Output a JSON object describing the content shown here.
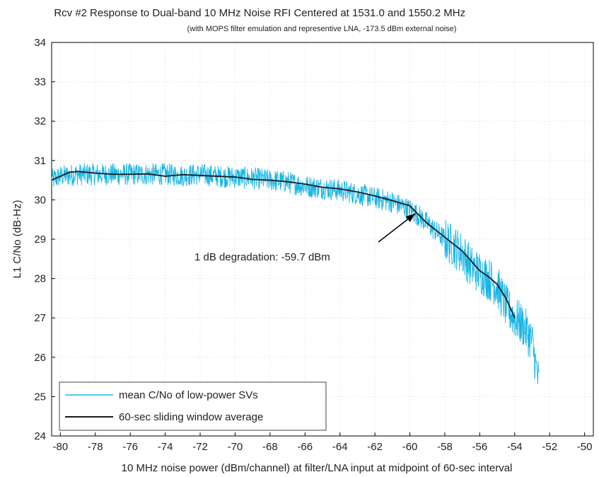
{
  "chart_data": {
    "type": "line",
    "label_prefix": "Rcv #2",
    "title": "Response to Dual-band 10 MHz Noise RFI Centered at 1531.0 and 1550.2 MHz",
    "subtitle": "(with MOPS filter emulation and representive LNA, -173.5 dBm external noise)",
    "xlabel": "10 MHz noise power (dBm/channel) at filter/LNA input at midpoint of 60-sec interval",
    "ylabel": "L1 C/No (dB-Hz)",
    "xlim": [
      -80.5,
      -49.5
    ],
    "ylim": [
      24,
      34
    ],
    "xticks": [
      -80,
      -78,
      -76,
      -74,
      -72,
      -70,
      -68,
      -66,
      -64,
      -62,
      -60,
      -58,
      -56,
      -54,
      -52,
      -50
    ],
    "yticks": [
      24,
      25,
      26,
      27,
      28,
      29,
      30,
      31,
      32,
      33,
      34
    ],
    "grid": true,
    "legend_position": "bottom-left",
    "annotation": {
      "text": "1 dB degradation: -59.7 dBm",
      "arrow_target": {
        "x": -59.7,
        "y": 29.65
      }
    },
    "series": [
      {
        "name": "mean C/No of low-power SVs",
        "color": "#19b5e6",
        "style": "noisy",
        "x": [
          -80.5,
          -80,
          -79,
          -78,
          -77,
          -76,
          -75,
          -74,
          -73,
          -72,
          -71,
          -70,
          -69,
          -68,
          -67,
          -66,
          -65,
          -64,
          -63,
          -62,
          -61,
          -60,
          -59.5,
          -59,
          -58,
          -57,
          -56.5,
          -56,
          -55.5,
          -55,
          -54.5,
          -54,
          -53.5,
          -53,
          -52.8,
          -52.6
        ],
        "y": [
          30.5,
          30.6,
          30.65,
          30.65,
          30.65,
          30.65,
          30.65,
          30.65,
          30.62,
          30.65,
          30.6,
          30.58,
          30.55,
          30.5,
          30.45,
          30.35,
          30.3,
          30.25,
          30.15,
          30.05,
          29.95,
          29.75,
          29.6,
          29.4,
          29.0,
          28.65,
          28.3,
          28.15,
          28.0,
          27.8,
          27.3,
          27.0,
          26.8,
          26.4,
          25.8,
          25.3
        ]
      },
      {
        "name": "60-sec sliding window average",
        "color": "#1a1a1a",
        "style": "smooth",
        "x": [
          -80.5,
          -80,
          -79.5,
          -79,
          -78,
          -77,
          -76,
          -75,
          -74,
          -73,
          -72,
          -71,
          -70,
          -69,
          -68,
          -67,
          -66,
          -65,
          -64,
          -63,
          -62,
          -61,
          -60,
          -59.5,
          -59,
          -58,
          -57,
          -56.5,
          -56,
          -55.5,
          -55,
          -54.5,
          -54
        ],
        "y": [
          30.5,
          30.6,
          30.7,
          30.72,
          30.68,
          30.65,
          30.65,
          30.66,
          30.6,
          30.64,
          30.62,
          30.6,
          30.58,
          30.52,
          30.5,
          30.46,
          30.4,
          30.32,
          30.28,
          30.2,
          30.1,
          29.98,
          29.85,
          29.62,
          29.4,
          29.05,
          28.7,
          28.45,
          28.2,
          28.05,
          27.85,
          27.5,
          27.0
        ]
      }
    ]
  }
}
